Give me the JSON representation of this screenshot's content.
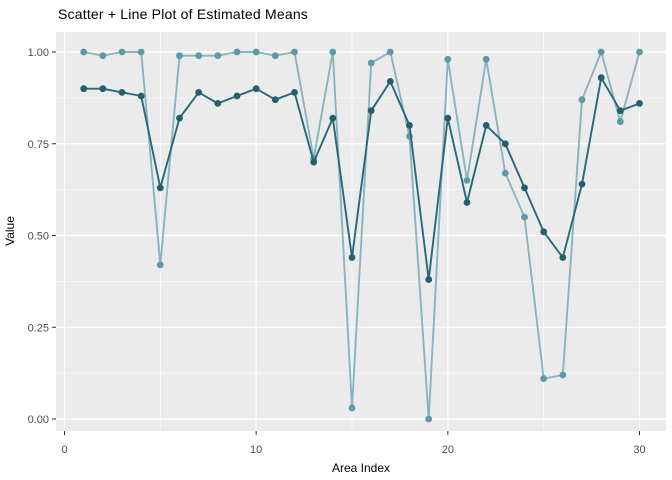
{
  "title": "Scatter + Line Plot of Estimated Means",
  "x_axis": {
    "label": "Area Index",
    "tick_labels": [
      "0",
      "10",
      "20",
      "30"
    ]
  },
  "y_axis": {
    "label": "Value",
    "tick_labels": [
      "0.00",
      "0.25",
      "0.50",
      "0.75",
      "1.00"
    ]
  },
  "legend": "none",
  "colors": {
    "panel_background": "#EBEBEB",
    "gridline": "#FFFFFF",
    "tick_label": "#4D4D4D",
    "tick_mark": "#333333",
    "title_text": "#000000",
    "series_dark_line": "#26697B",
    "series_dark_marker": "#235F6F",
    "series_light_line": "#8AB4BE",
    "series_light_marker": "#5E99A8"
  },
  "chart_data": {
    "type": "line",
    "subtype": "scatter+line, ggplot2 style, no legend",
    "title": "Scatter + Line Plot of Estimated Means",
    "xlabel": "Area Index",
    "ylabel": "Value",
    "xlim": [
      -0.45,
      31.45
    ],
    "ylim": [
      -0.05,
      1.05
    ],
    "grid": "white major and minor gridlines on gray panel",
    "x": [
      1,
      2,
      3,
      4,
      5,
      6,
      7,
      8,
      9,
      10,
      11,
      12,
      13,
      14,
      15,
      16,
      17,
      18,
      19,
      20,
      21,
      22,
      23,
      24,
      25,
      26,
      27,
      28,
      29,
      30
    ],
    "series": [
      {
        "name": "light-teal-series",
        "line_color": "#8AB4BE",
        "marker_color": "#5E99A8",
        "values": [
          1.0,
          0.99,
          1.0,
          1.0,
          0.42,
          0.99,
          0.99,
          0.99,
          1.0,
          1.0,
          0.99,
          1.0,
          0.71,
          1.0,
          0.03,
          0.97,
          1.0,
          0.77,
          0.0,
          0.98,
          0.65,
          0.98,
          0.67,
          0.55,
          0.11,
          0.12,
          0.87,
          1.0,
          0.81,
          1.0
        ]
      },
      {
        "name": "dark-teal-series",
        "line_color": "#26697B",
        "marker_color": "#235F6F",
        "values": [
          0.9,
          0.9,
          0.89,
          0.88,
          0.63,
          0.82,
          0.89,
          0.86,
          0.88,
          0.9,
          0.87,
          0.89,
          0.7,
          0.82,
          0.44,
          0.84,
          0.92,
          0.8,
          0.38,
          0.82,
          0.59,
          0.8,
          0.75,
          0.63,
          0.51,
          0.44,
          0.64,
          0.93,
          0.84,
          0.86
        ]
      }
    ],
    "x_ticks": [
      {
        "v": 0,
        "label": "0"
      },
      {
        "v": 10,
        "label": "10"
      },
      {
        "v": 20,
        "label": "20"
      },
      {
        "v": 30,
        "label": "30"
      }
    ],
    "y_ticks": [
      {
        "v": 0,
        "label": "0.00"
      },
      {
        "v": 0.25,
        "label": "0.25"
      },
      {
        "v": 0.5,
        "label": "0.50"
      },
      {
        "v": 0.75,
        "label": "0.75"
      },
      {
        "v": 1,
        "label": "1.00"
      }
    ],
    "x_minor": [
      5,
      15,
      25
    ],
    "y_minor": [
      0.125,
      0.375,
      0.625,
      0.875
    ]
  }
}
